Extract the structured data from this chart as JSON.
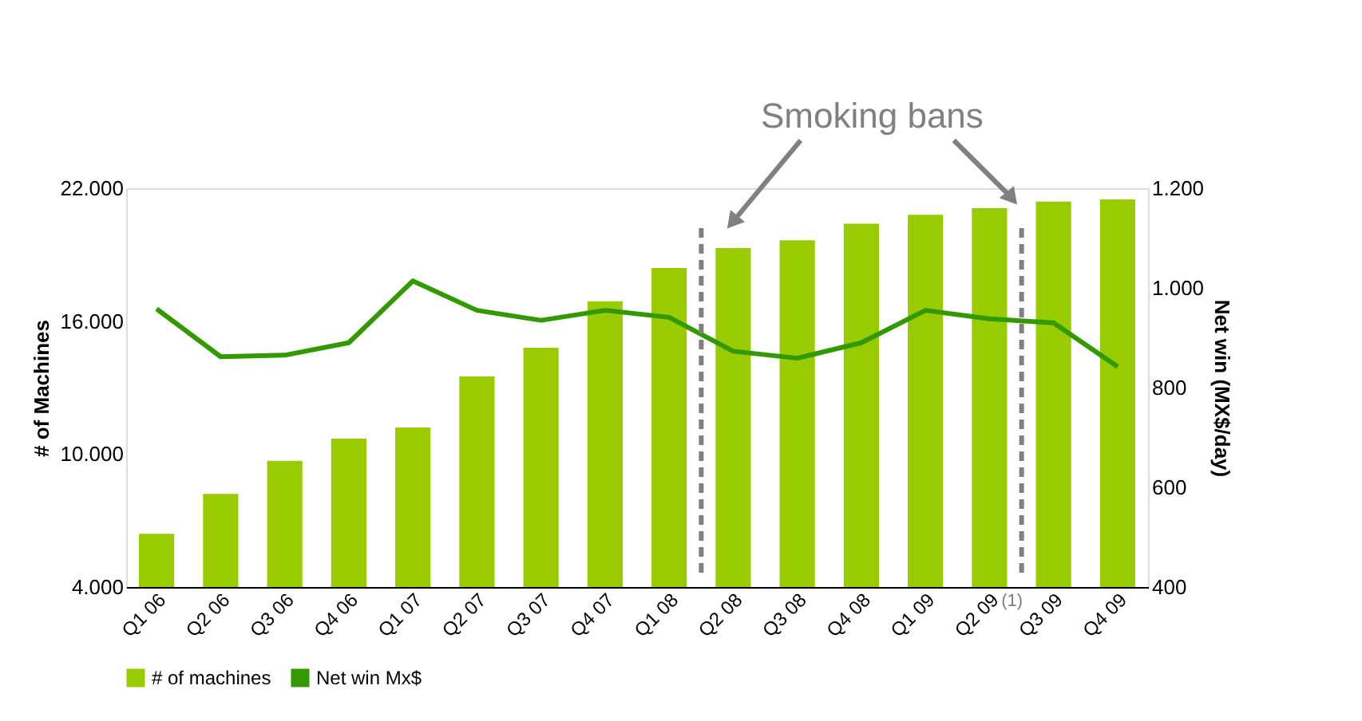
{
  "chart_data": {
    "type": "bar",
    "categories": [
      "Q1 06",
      "Q2 06",
      "Q3 06",
      "Q4 06",
      "Q1 07",
      "Q2 07",
      "Q3 07",
      "Q4 07",
      "Q1 08",
      "Q2 08",
      "Q3 08",
      "Q4 08",
      "Q1 09",
      "Q2 09",
      "Q3 09",
      "Q4 09"
    ],
    "series": [
      {
        "name": "# of machines",
        "color": "#99cc00",
        "values": [
          6400,
          8200,
          9700,
          10700,
          11200,
          13500,
          14800,
          16900,
          18400,
          19300,
          19650,
          20400,
          20800,
          21100,
          21400,
          21500
        ]
      },
      {
        "name": "Net win Mx$",
        "type": "line",
        "axis": "y2",
        "color": "#339900",
        "values": [
          958,
          862,
          865,
          890,
          1014,
          955,
          935,
          955,
          941,
          873,
          859,
          890,
          955,
          938,
          930,
          842
        ]
      }
    ],
    "ylabel": "# of Machines",
    "y2label": "Net win (MX$/day)",
    "ylim": [
      4000,
      22000
    ],
    "yticks": [
      {
        "value": 4000,
        "label": "4.000"
      },
      {
        "value": 10000,
        "label": "10.000"
      },
      {
        "value": 16000,
        "label": "16.000"
      },
      {
        "value": 22000,
        "label": "22.000"
      }
    ],
    "y2lim": [
      400,
      1200
    ],
    "y2ticks": [
      {
        "value": 400,
        "label": "400"
      },
      {
        "value": 600,
        "label": "600"
      },
      {
        "value": 800,
        "label": "800"
      },
      {
        "value": 1000,
        "label": "1.000"
      },
      {
        "value": 1200,
        "label": "1.200"
      }
    ],
    "ref_lines": [
      {
        "axis": "x",
        "value": "Q2 08",
        "color": "#808080",
        "line_style": "dashed"
      },
      {
        "axis": "x",
        "value": "Q3 09",
        "color": "#808080",
        "line_style": "dashed"
      }
    ],
    "annotations": [
      "Smoking bans",
      "(1)"
    ],
    "legend": "bottom",
    "grid": false,
    "marker": "none",
    "line_style": "solid"
  }
}
